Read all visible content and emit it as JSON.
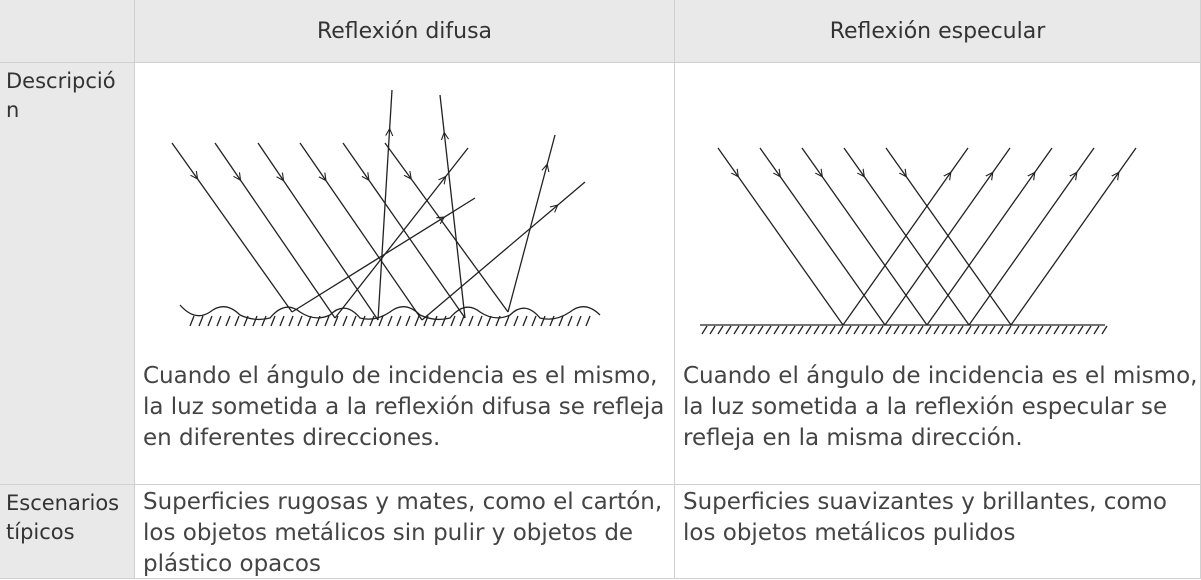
{
  "table": {
    "columns": [
      "Reflexión difusa",
      "Reflexión especular"
    ],
    "rows": [
      {
        "label": "Descripción",
        "cells": [
          "Cuando el ángulo de incidencia es el mismo, la luz sometida a la reflexión difusa se refleja en diferentes direcciones.",
          "Cuando el ángulo de incidencia es el mismo, la luz sometida a la reflexión especular se refleja en la misma dirección."
        ]
      },
      {
        "label": "Escenarios típicos",
        "cells": [
          "Superficies rugosas y mates, como el cartón, los objetos metálicos sin pulir y objetos de plástico opacos",
          "Superficies suavizantes y brillantes, como los objetos metálicos pulidos"
        ]
      }
    ]
  }
}
